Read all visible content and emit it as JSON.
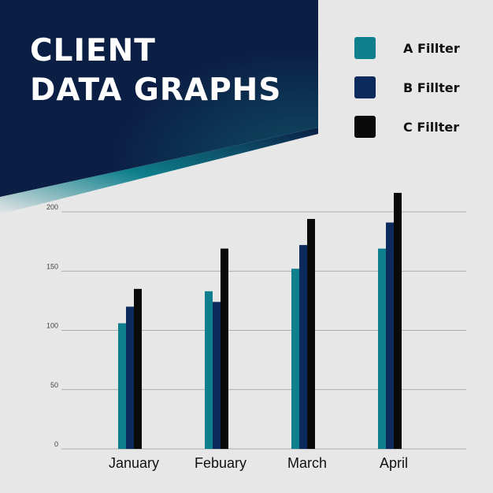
{
  "title": {
    "line1": "CLIENT",
    "line2": "DATA GRAPHS"
  },
  "colors": {
    "banner_dark": "#0b1f44",
    "banner_teal": "#0e7f8c",
    "background": "#e7e7e7",
    "grid": "#9a9a9a"
  },
  "legend": [
    {
      "label": "A Fillter",
      "color": "#0e7f8c"
    },
    {
      "label": "B Fillter",
      "color": "#0c2a5c"
    },
    {
      "label": "C Fillter",
      "color": "#0a0a0a"
    }
  ],
  "chart_data": {
    "type": "bar",
    "title": "",
    "xlabel": "",
    "ylabel": "",
    "ylim": [
      0,
      200
    ],
    "yticks": [
      0,
      50,
      100,
      150,
      200
    ],
    "categories": [
      "January",
      "Febuary",
      "March",
      "April"
    ],
    "series": [
      {
        "name": "A Fillter",
        "color": "#0e7f8c",
        "values": [
          106,
          133,
          152,
          169
        ]
      },
      {
        "name": "B Fillter",
        "color": "#0c2a5c",
        "values": [
          120,
          124,
          172,
          191
        ]
      },
      {
        "name": "C Fillter",
        "color": "#0a0a0a",
        "values": [
          135,
          169,
          194,
          216
        ]
      }
    ],
    "grid": true,
    "legend_position": "top-right"
  }
}
